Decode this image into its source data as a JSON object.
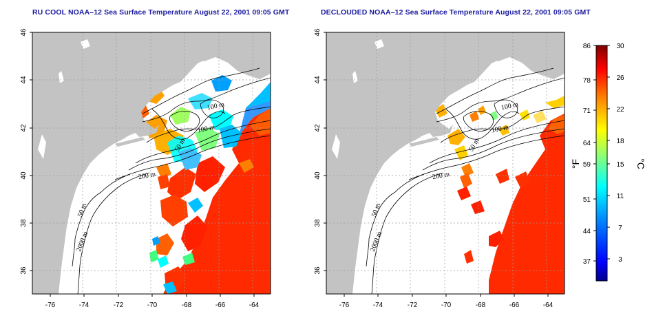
{
  "maps": [
    {
      "id": "raw",
      "title": "RU COOL NOAA–12 Sea Surface Temperature August 22, 2001 09:05 GMT",
      "xticks": [
        "-76",
        "-74",
        "-72",
        "-70",
        "-68",
        "-66",
        "-64"
      ],
      "yticks": [
        "36",
        "38",
        "40",
        "42",
        "44",
        "46"
      ],
      "contour_labels": [
        "100 m",
        "100 m",
        "50 m",
        "200 m",
        "50 m",
        "2000 m"
      ]
    },
    {
      "id": "declouded",
      "title": "DECLOUDED NOAA–12 Sea Surface Temperature August 22, 2001 09:05 GMT",
      "xticks": [
        "-76",
        "-74",
        "-72",
        "-70",
        "-68",
        "-66",
        "-64"
      ],
      "yticks": [
        "36",
        "38",
        "40",
        "42",
        "44",
        "46"
      ],
      "contour_labels": [
        "100 m",
        "100 m",
        "50 m",
        "200 m",
        "50 m",
        "2000 m"
      ]
    }
  ],
  "colorbar": {
    "fahrenheit_labels": [
      "86",
      "78",
      "71",
      "64",
      "59",
      "51",
      "44",
      "37"
    ],
    "celsius_labels": [
      "30",
      "26",
      "22",
      "18",
      "15",
      "11",
      "7",
      "3"
    ],
    "fahrenheit_unit": "°F",
    "celsius_unit": "°C",
    "colors": [
      "#00008f",
      "#0000ff",
      "#0080ff",
      "#00ffff",
      "#80ff80",
      "#ffff00",
      "#ff8000",
      "#ff0000",
      "#800000"
    ]
  }
}
